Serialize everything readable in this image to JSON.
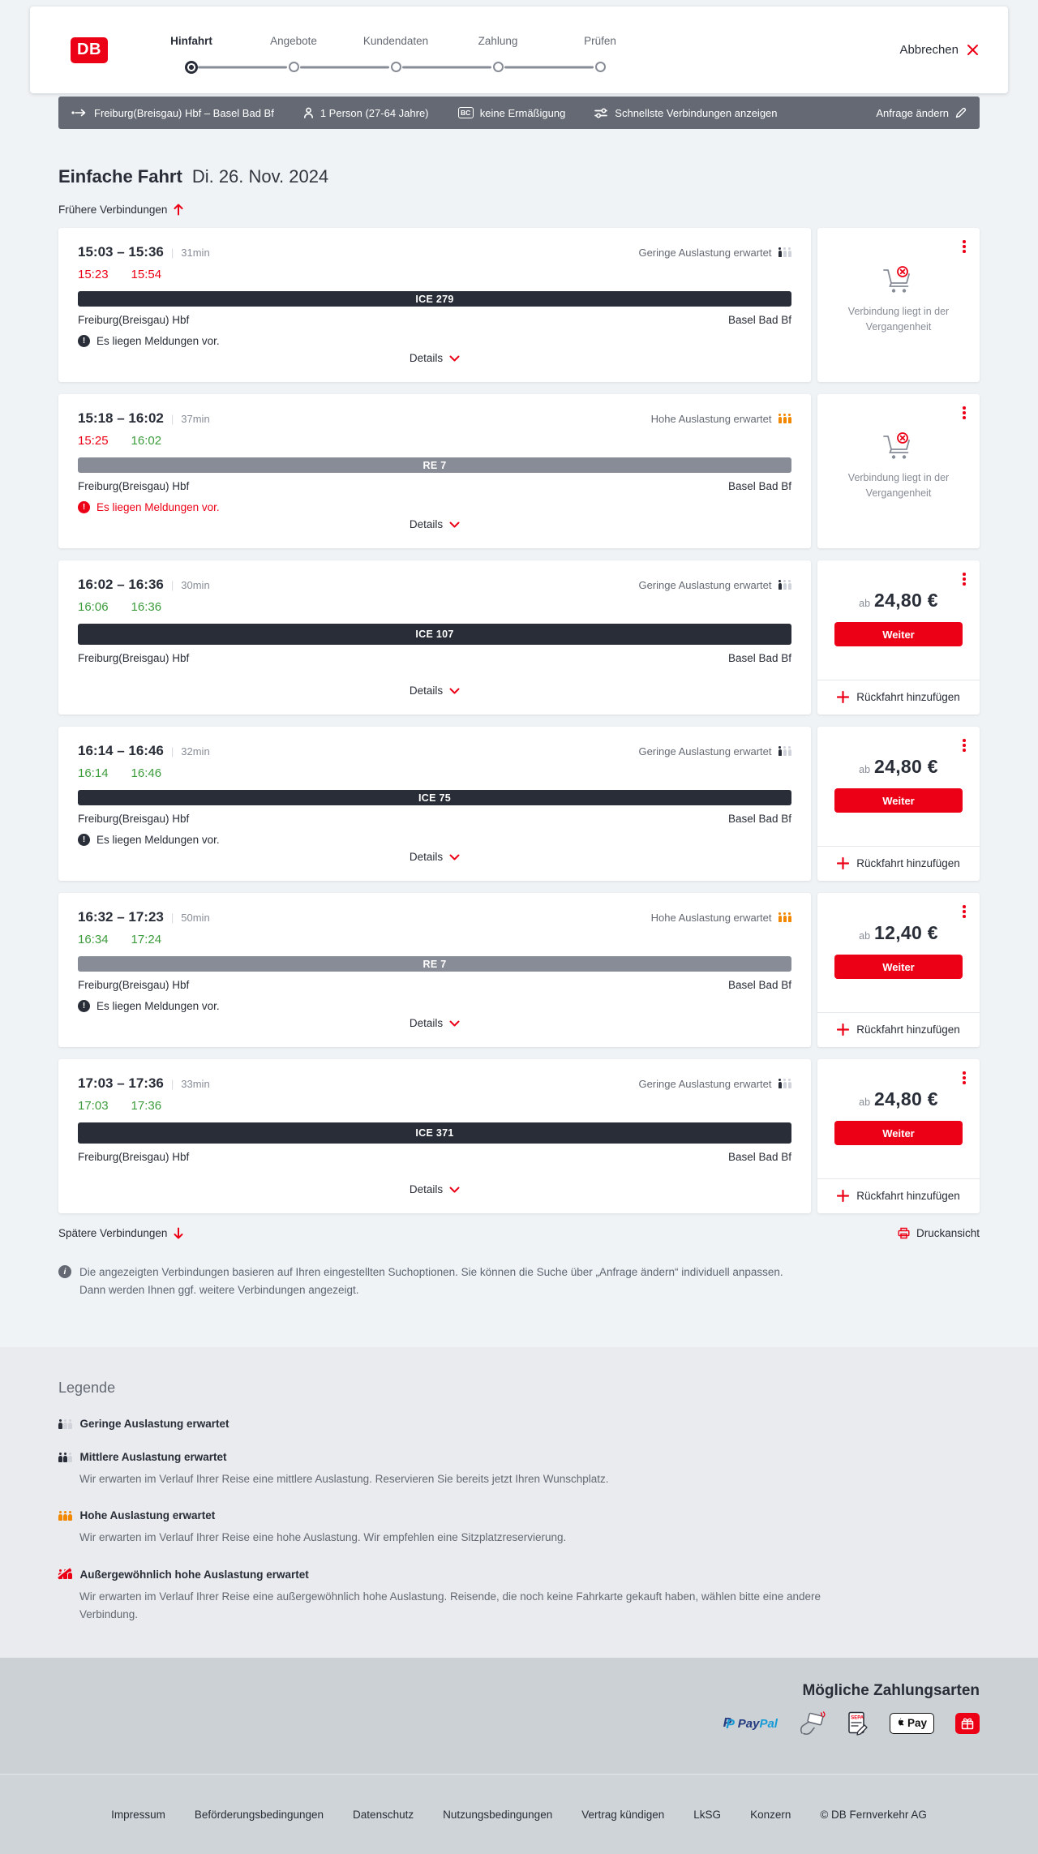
{
  "app": {
    "logo": "DB",
    "cancel": "Abbrechen"
  },
  "stepper": {
    "steps": [
      {
        "label": "Hinfahrt",
        "active": true
      },
      {
        "label": "Angebote",
        "active": false
      },
      {
        "label": "Kundendaten",
        "active": false
      },
      {
        "label": "Zahlung",
        "active": false
      },
      {
        "label": "Prüfen",
        "active": false
      }
    ]
  },
  "summary_bar": {
    "route": "Freiburg(Breisgau) Hbf – Basel Bad Bf",
    "passengers": "1 Person (27-64 Jahre)",
    "discount": "keine Ermäßigung",
    "discount_badge": "BC",
    "fastest_link": "Schnellste Verbindungen anzeigen",
    "change_link": "Anfrage ändern"
  },
  "results": {
    "title": "Einfache Fahrt",
    "date": "Di. 26. Nov. 2024",
    "earlier_link": "Frühere Verbindungen",
    "later_link": "Spätere Verbindungen",
    "print_link": "Druckansicht",
    "note": "Die angezeigten Verbindungen basieren auf Ihren eingestellten Suchoptionen. Sie können die Suche über „Anfrage ändern“ individuell anpassen. Dann werden Ihnen ggf. weitere Verbindungen angezeigt."
  },
  "labels": {
    "details": "Details",
    "messages": "Es liegen Meldungen vor.",
    "price_prefix": "ab",
    "continue": "Weiter",
    "add_return": "Rückfahrt hinzufügen",
    "past": "Verbindung liegt in der Vergangenheit"
  },
  "connections": [
    {
      "depart": "15:03",
      "arrive": "15:36",
      "duration": "31min",
      "rt_depart": "15:23",
      "rt_depart_status": "late",
      "rt_arrive": "15:54",
      "rt_arrive_status": "late",
      "train": "ICE 279",
      "train_style": "ice",
      "occupancy": "Geringe Auslastung erwartet",
      "occupancy_level": "low",
      "from": "Freiburg(Breisgau) Hbf",
      "to": "Basel Bad Bf",
      "messages": "normal",
      "action": "past",
      "price": null
    },
    {
      "depart": "15:18",
      "arrive": "16:02",
      "duration": "37min",
      "rt_depart": "15:25",
      "rt_depart_status": "late",
      "rt_arrive": "16:02",
      "rt_arrive_status": "ontime",
      "train": "RE 7",
      "train_style": "regional",
      "occupancy": "Hohe Auslastung erwartet",
      "occupancy_level": "high",
      "from": "Freiburg(Breisgau) Hbf",
      "to": "Basel Bad Bf",
      "messages": "alert",
      "action": "past",
      "price": null
    },
    {
      "depart": "16:02",
      "arrive": "16:36",
      "duration": "30min",
      "rt_depart": "16:06",
      "rt_depart_status": "ontime",
      "rt_arrive": "16:36",
      "rt_arrive_status": "ontime",
      "train": "ICE 107",
      "train_style": "ice",
      "occupancy": "Geringe Auslastung erwartet",
      "occupancy_level": "low",
      "from": "Freiburg(Breisgau) Hbf",
      "to": "Basel Bad Bf",
      "messages": null,
      "action": "price",
      "price": "24,80 €"
    },
    {
      "depart": "16:14",
      "arrive": "16:46",
      "duration": "32min",
      "rt_depart": "16:14",
      "rt_depart_status": "ontime",
      "rt_arrive": "16:46",
      "rt_arrive_status": "ontime",
      "train": "ICE 75",
      "train_style": "ice",
      "occupancy": "Geringe Auslastung erwartet",
      "occupancy_level": "low",
      "from": "Freiburg(Breisgau) Hbf",
      "to": "Basel Bad Bf",
      "messages": "normal",
      "action": "price",
      "price": "24,80 €"
    },
    {
      "depart": "16:32",
      "arrive": "17:23",
      "duration": "50min",
      "rt_depart": "16:34",
      "rt_depart_status": "ontime",
      "rt_arrive": "17:24",
      "rt_arrive_status": "ontime",
      "train": "RE 7",
      "train_style": "regional",
      "occupancy": "Hohe Auslastung erwartet",
      "occupancy_level": "high",
      "from": "Freiburg(Breisgau) Hbf",
      "to": "Basel Bad Bf",
      "messages": "normal",
      "action": "price",
      "price": "12,40 €"
    },
    {
      "depart": "17:03",
      "arrive": "17:36",
      "duration": "33min",
      "rt_depart": "17:03",
      "rt_depart_status": "ontime",
      "rt_arrive": "17:36",
      "rt_arrive_status": "ontime",
      "train": "ICE 371",
      "train_style": "ice",
      "occupancy": "Geringe Auslastung erwartet",
      "occupancy_level": "low",
      "from": "Freiburg(Breisgau) Hbf",
      "to": "Basel Bad Bf",
      "messages": null,
      "action": "price",
      "price": "24,80 €"
    }
  ],
  "legend": {
    "title": "Legende",
    "items": [
      {
        "level": "low",
        "label": "Geringe Auslastung erwartet",
        "desc": null
      },
      {
        "level": "medium",
        "label": "Mittlere Auslastung erwartet",
        "desc": "Wir erwarten im Verlauf Ihrer Reise eine mittlere Auslastung. Reservieren Sie bereits jetzt Ihren Wunschplatz."
      },
      {
        "level": "high",
        "label": "Hohe Auslastung erwartet",
        "desc": "Wir erwarten im Verlauf Ihrer Reise eine hohe Auslastung. Wir empfehlen eine Sitzplatzreservierung."
      },
      {
        "level": "exceptional",
        "label": "Außergewöhnlich hohe Auslastung erwartet",
        "desc": "Wir erwarten im Verlauf Ihrer Reise eine außergewöhnlich hohe Auslastung. Reisende, die noch keine Fahrkarte gekauft haben, wählen bitte eine andere Verbindung."
      }
    ]
  },
  "payment": {
    "title": "Mögliche Zahlungsarten",
    "paypal_word_1": "Pay",
    "paypal_word_2": "Pal",
    "applepay_label": "Pay",
    "methods": [
      "PayPal",
      "Kreditkarte",
      "SEPA-Lastschrift",
      "Apple Pay",
      "Geschenkgutschein"
    ]
  },
  "footer": {
    "links": [
      "Impressum",
      "Beförderungsbedingungen",
      "Datenschutz",
      "Nutzungsbedingungen",
      "Vertrag kündigen",
      "LkSG",
      "Konzern"
    ],
    "copyright": "© DB Fernverkehr AG"
  },
  "colors": {
    "db_red": "#ec0016",
    "dark": "#282d37",
    "gray": "#646973",
    "steel": "#878c96",
    "green": "#3c9c3c",
    "orange": "#f28700",
    "page_bg": "#f0f3f5",
    "ice_bar": "#282d37",
    "re_bar": "#878c96"
  }
}
